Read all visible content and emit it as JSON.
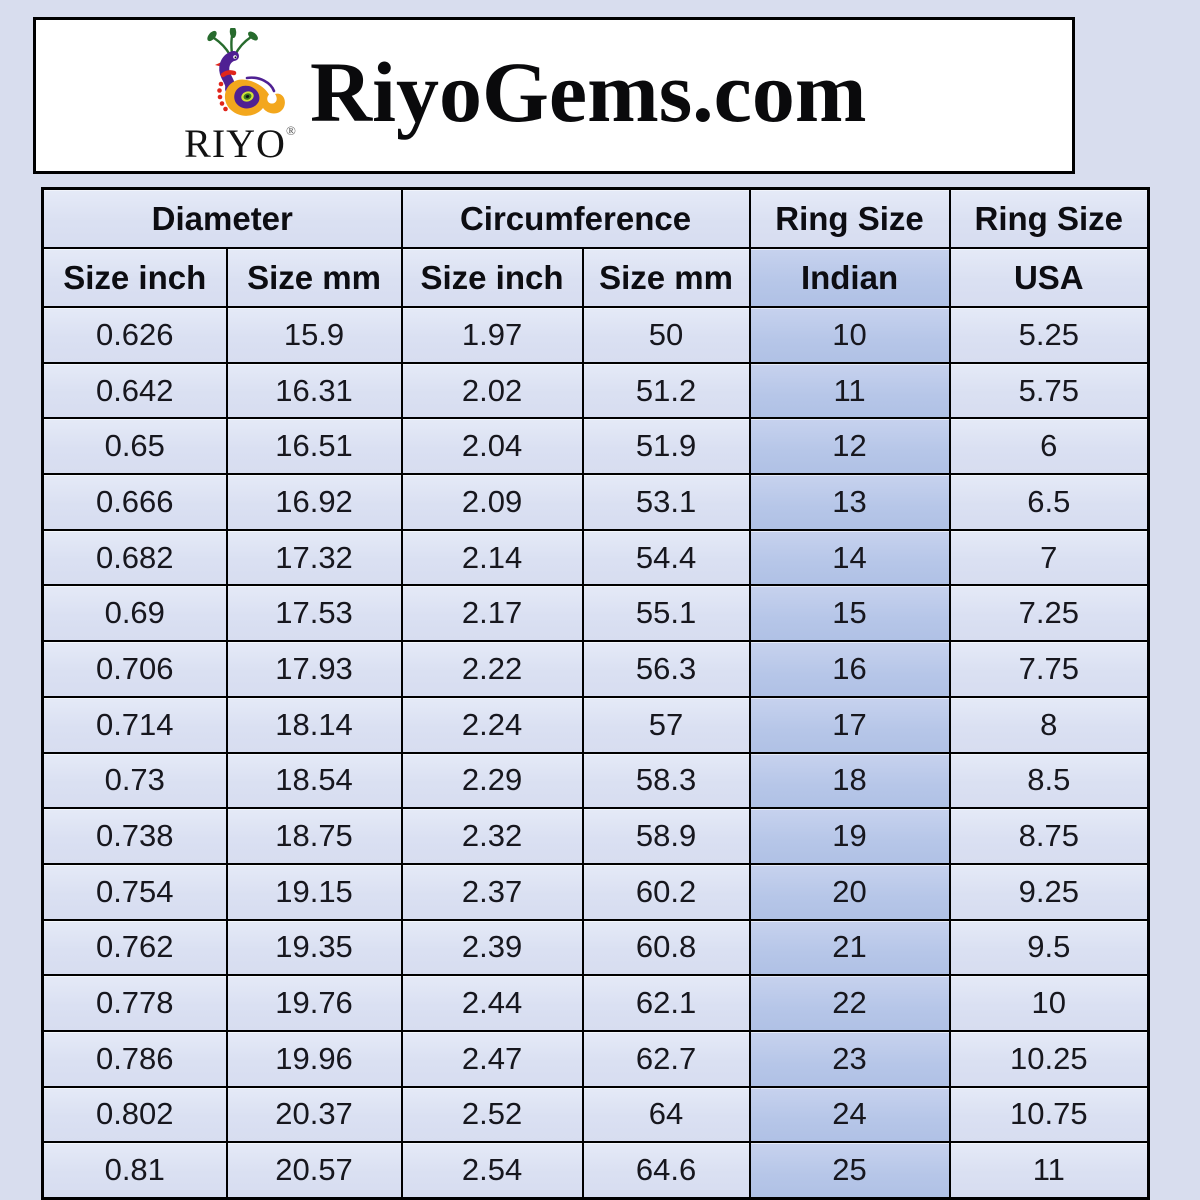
{
  "page": {
    "background_color": "#d8ddee"
  },
  "header": {
    "brand": "RiyoGems.com",
    "logo": {
      "icon": "peacock-icon",
      "wordmark": "RIYO",
      "registered_mark": "®"
    }
  },
  "chart_data": {
    "type": "table",
    "title": "RiyoGems.com",
    "column_groups": [
      {
        "label": "Diameter",
        "span": 2
      },
      {
        "label": "Circumference",
        "span": 2
      },
      {
        "label": "Ring Size",
        "span": 1
      },
      {
        "label": "Ring Size",
        "span": 1
      }
    ],
    "columns": [
      "Size inch",
      "Size mm",
      "Size inch",
      "Size mm",
      "Indian",
      "USA"
    ],
    "highlight_column": 4,
    "rows": [
      [
        "0.626",
        "15.9",
        "1.97",
        "50",
        "10",
        "5.25"
      ],
      [
        "0.642",
        "16.31",
        "2.02",
        "51.2",
        "11",
        "5.75"
      ],
      [
        "0.65",
        "16.51",
        "2.04",
        "51.9",
        "12",
        "6"
      ],
      [
        "0.666",
        "16.92",
        "2.09",
        "53.1",
        "13",
        "6.5"
      ],
      [
        "0.682",
        "17.32",
        "2.14",
        "54.4",
        "14",
        "7"
      ],
      [
        "0.69",
        "17.53",
        "2.17",
        "55.1",
        "15",
        "7.25"
      ],
      [
        "0.706",
        "17.93",
        "2.22",
        "56.3",
        "16",
        "7.75"
      ],
      [
        "0.714",
        "18.14",
        "2.24",
        "57",
        "17",
        "8"
      ],
      [
        "0.73",
        "18.54",
        "2.29",
        "58.3",
        "18",
        "8.5"
      ],
      [
        "0.738",
        "18.75",
        "2.32",
        "58.9",
        "19",
        "8.75"
      ],
      [
        "0.754",
        "19.15",
        "2.37",
        "60.2",
        "20",
        "9.25"
      ],
      [
        "0.762",
        "19.35",
        "2.39",
        "60.8",
        "21",
        "9.5"
      ],
      [
        "0.778",
        "19.76",
        "2.44",
        "62.1",
        "22",
        "10"
      ],
      [
        "0.786",
        "19.96",
        "2.47",
        "62.7",
        "23",
        "10.25"
      ],
      [
        "0.802",
        "20.37",
        "2.52",
        "64",
        "24",
        "10.75"
      ],
      [
        "0.81",
        "20.57",
        "2.54",
        "64.6",
        "25",
        "11"
      ]
    ],
    "colors": {
      "cell_background": "#dce2f4",
      "highlight_background": "#b9c8e8",
      "border": "#000000",
      "header_text": "#0d0d12",
      "cell_text": "#17171e"
    },
    "layout": {
      "grid": true,
      "header_rows": 2,
      "data_rows": 16,
      "highlighted_column_name": "Indian"
    }
  }
}
